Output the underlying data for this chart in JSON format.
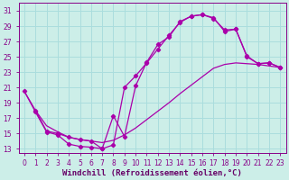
{
  "xlabel": "Windchill (Refroidissement éolien,°C)",
  "xlim": [
    -0.5,
    23.5
  ],
  "ylim": [
    12.5,
    32
  ],
  "xticks": [
    0,
    1,
    2,
    3,
    4,
    5,
    6,
    7,
    8,
    9,
    10,
    11,
    12,
    13,
    14,
    15,
    16,
    17,
    18,
    19,
    20,
    21,
    22,
    23
  ],
  "yticks": [
    13,
    15,
    17,
    19,
    21,
    23,
    25,
    27,
    29,
    31
  ],
  "bg_color": "#cceee8",
  "line_color": "#aa00aa",
  "grid_color": "#aadddd",
  "tick_fontsize": 5.5,
  "label_fontsize": 6.5,
  "line1_x": [
    0,
    1,
    2,
    3,
    4,
    5,
    6,
    7,
    8,
    9,
    10,
    11,
    12,
    13,
    14,
    15,
    16,
    17,
    18,
    19,
    20,
    21,
    22,
    23
  ],
  "line1_y": [
    20.5,
    17.8,
    15.2,
    14.8,
    13.6,
    13.3,
    13.2,
    13.0,
    17.3,
    14.6,
    21.2,
    24.3,
    26.6,
    27.6,
    29.6,
    30.3,
    30.5,
    30.1,
    28.3,
    28.6,
    25.1,
    24.1,
    24.2,
    23.6
  ],
  "line2_x": [
    0,
    1,
    2,
    3,
    4,
    5,
    6,
    7,
    8,
    9,
    10,
    11,
    12,
    13,
    14,
    15,
    16,
    17,
    18,
    19,
    20,
    21,
    22,
    23
  ],
  "line2_y": [
    20.5,
    18.0,
    16.0,
    15.2,
    14.5,
    14.2,
    14.0,
    13.8,
    14.1,
    14.8,
    15.7,
    16.8,
    17.9,
    19.0,
    20.2,
    21.3,
    22.4,
    23.5,
    24.0,
    24.2,
    24.1,
    24.0,
    23.8,
    23.6
  ],
  "line3_x": [
    1,
    2,
    3,
    4,
    5,
    6,
    7,
    8,
    9,
    10,
    11,
    12,
    13,
    14,
    15,
    16,
    17,
    18,
    19,
    20,
    21,
    22,
    23
  ],
  "line3_y": [
    18.0,
    15.3,
    15.0,
    14.5,
    14.2,
    14.0,
    13.0,
    13.5,
    21.0,
    22.5,
    24.2,
    26.0,
    27.8,
    29.5,
    30.3,
    30.5,
    30.0,
    28.5,
    28.6,
    25.0,
    24.1,
    24.2,
    23.6
  ]
}
